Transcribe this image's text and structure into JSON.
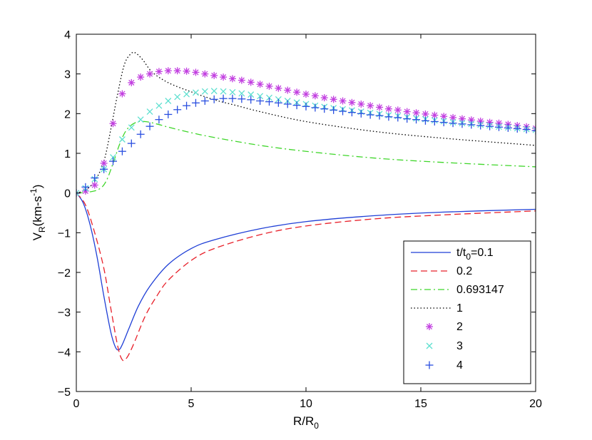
{
  "chart_data": {
    "type": "line",
    "title": "",
    "xlabel": {
      "main": "R/R",
      "sub": "0"
    },
    "ylabel": {
      "main": "V",
      "sub": "R",
      "unit_prefix": "(km-s",
      "unit_sup": "-1",
      "unit_suffix": ")"
    },
    "xlim": [
      0,
      20
    ],
    "ylim": [
      -5,
      4
    ],
    "xticks": [
      0,
      5,
      10,
      15,
      20
    ],
    "yticks": [
      -5,
      -4,
      -3,
      -2,
      -1,
      0,
      1,
      2,
      3,
      4
    ],
    "xtick_labels": [
      "0",
      "5",
      "10",
      "15",
      "20"
    ],
    "ytick_labels": [
      "−5",
      "−4",
      "−3",
      "−2",
      "−1",
      "0",
      "1",
      "2",
      "3",
      "4"
    ],
    "grid": false,
    "legend_position": "lower-right",
    "legend_first": {
      "prefix": "t/t",
      "sub": "0",
      "suffix": "=0.1"
    },
    "series": [
      {
        "name": "t/t0=0.1",
        "label": "t/t0=0.1",
        "style": "solid",
        "color": "#1f3fd6",
        "x": [
          0,
          0.3,
          0.6,
          0.9,
          1.2,
          1.5,
          1.7,
          1.85,
          2.0,
          2.3,
          2.7,
          3.2,
          4,
          5,
          6,
          8,
          10,
          13,
          16,
          20
        ],
        "y": [
          0,
          -0.25,
          -0.8,
          -1.6,
          -2.6,
          -3.5,
          -3.88,
          -3.95,
          -3.82,
          -3.4,
          -2.85,
          -2.35,
          -1.8,
          -1.4,
          -1.18,
          -0.9,
          -0.72,
          -0.57,
          -0.48,
          -0.41
        ]
      },
      {
        "name": "0.2",
        "label": "0.2",
        "style": "dashed",
        "color": "#e8202a",
        "x": [
          0,
          0.4,
          0.8,
          1.2,
          1.5,
          1.8,
          2.0,
          2.2,
          2.5,
          3,
          3.5,
          4,
          5,
          6,
          8,
          10,
          13,
          16,
          20
        ],
        "y": [
          0,
          -0.3,
          -1.0,
          -1.9,
          -2.9,
          -3.85,
          -4.2,
          -4.15,
          -3.8,
          -3.1,
          -2.6,
          -2.2,
          -1.7,
          -1.4,
          -1.05,
          -0.83,
          -0.65,
          -0.55,
          -0.45
        ]
      },
      {
        "name": "0.693147",
        "label": "0.693147",
        "style": "dashdot",
        "color": "#3fd62a",
        "x": [
          0,
          0.5,
          1.0,
          1.3,
          1.6,
          1.9,
          2.2,
          2.6,
          3.0,
          3.5,
          4,
          5,
          6,
          8,
          10,
          13,
          16,
          20
        ],
        "y": [
          0,
          0.02,
          0.1,
          0.3,
          0.75,
          1.25,
          1.6,
          1.78,
          1.8,
          1.74,
          1.66,
          1.52,
          1.4,
          1.2,
          1.05,
          0.88,
          0.77,
          0.66
        ]
      },
      {
        "name": "1",
        "label": "1",
        "style": "dotted",
        "color": "#000000",
        "x": [
          0,
          0.4,
          0.8,
          1.2,
          1.5,
          1.8,
          2.1,
          2.4,
          2.6,
          2.9,
          3.3,
          4,
          5,
          6,
          7,
          8,
          10,
          13,
          16,
          20
        ],
        "y": [
          0,
          0.08,
          0.3,
          0.8,
          1.6,
          2.5,
          3.25,
          3.52,
          3.52,
          3.35,
          3.05,
          2.78,
          2.55,
          2.35,
          2.2,
          2.05,
          1.8,
          1.55,
          1.38,
          1.2
        ]
      },
      {
        "name": "2",
        "label": "2",
        "style": "marker-star",
        "color": "#c23fe0",
        "x": [
          0,
          0.4,
          0.8,
          1.2,
          1.6,
          2.0,
          2.4,
          2.8,
          3.2,
          3.6,
          4.0,
          4.4,
          4.8,
          5.2,
          5.6,
          6.0,
          6.4,
          6.8,
          7.2,
          7.6,
          8.0,
          8.4,
          8.8,
          9.2,
          9.6,
          10.0,
          10.4,
          10.8,
          11.2,
          11.6,
          12.0,
          12.4,
          12.8,
          13.2,
          13.6,
          14.0,
          14.4,
          14.8,
          15.2,
          15.6,
          16.0,
          16.4,
          16.8,
          17.2,
          17.6,
          18.0,
          18.4,
          18.8,
          19.2,
          19.6,
          20.0
        ],
        "y": [
          0,
          0.05,
          0.2,
          0.75,
          1.75,
          2.5,
          2.78,
          2.92,
          3.0,
          3.06,
          3.08,
          3.08,
          3.07,
          3.04,
          3.0,
          2.96,
          2.92,
          2.88,
          2.84,
          2.79,
          2.74,
          2.69,
          2.64,
          2.59,
          2.54,
          2.49,
          2.45,
          2.4,
          2.36,
          2.32,
          2.28,
          2.24,
          2.2,
          2.16,
          2.12,
          2.09,
          2.05,
          2.02,
          1.99,
          1.96,
          1.93,
          1.9,
          1.87,
          1.84,
          1.81,
          1.78,
          1.76,
          1.73,
          1.7,
          1.67,
          1.63
        ]
      },
      {
        "name": "3",
        "label": "3",
        "style": "marker-x",
        "color": "#5fe0d0",
        "x": [
          0,
          0.4,
          0.8,
          1.2,
          1.6,
          2.0,
          2.4,
          2.8,
          3.2,
          3.6,
          4.0,
          4.4,
          4.8,
          5.2,
          5.6,
          6.0,
          6.4,
          6.8,
          7.2,
          7.6,
          8.0,
          8.4,
          8.8,
          9.2,
          9.6,
          10.0,
          10.4,
          10.8,
          11.2,
          11.6,
          12.0,
          12.4,
          12.8,
          13.2,
          13.6,
          14.0,
          14.4,
          14.8,
          15.2,
          15.6,
          16.0,
          16.4,
          16.8,
          17.2,
          17.6,
          18.0,
          18.4,
          18.8,
          19.2,
          19.6,
          20.0
        ],
        "y": [
          0,
          0.12,
          0.35,
          0.6,
          0.9,
          1.35,
          1.65,
          1.85,
          2.05,
          2.2,
          2.32,
          2.42,
          2.49,
          2.53,
          2.56,
          2.57,
          2.56,
          2.54,
          2.51,
          2.48,
          2.44,
          2.4,
          2.36,
          2.32,
          2.28,
          2.24,
          2.2,
          2.17,
          2.14,
          2.11,
          2.08,
          2.05,
          2.02,
          1.99,
          1.96,
          1.94,
          1.91,
          1.88,
          1.86,
          1.83,
          1.81,
          1.78,
          1.76,
          1.74,
          1.72,
          1.7,
          1.67,
          1.65,
          1.63,
          1.61,
          1.59
        ]
      },
      {
        "name": "4",
        "label": "4",
        "style": "marker-plus",
        "color": "#2a4fe0",
        "x": [
          0,
          0.4,
          0.8,
          1.2,
          1.6,
          2.0,
          2.4,
          2.8,
          3.2,
          3.6,
          4.0,
          4.4,
          4.8,
          5.2,
          5.6,
          6.0,
          6.4,
          6.8,
          7.2,
          7.6,
          8.0,
          8.4,
          8.8,
          9.2,
          9.6,
          10.0,
          10.4,
          10.8,
          11.2,
          11.6,
          12.0,
          12.4,
          12.8,
          13.2,
          13.6,
          14.0,
          14.4,
          14.8,
          15.2,
          15.6,
          16.0,
          16.4,
          16.8,
          17.2,
          17.6,
          18.0,
          18.4,
          18.8,
          19.2,
          19.6,
          20.0
        ],
        "y": [
          0,
          0.15,
          0.38,
          0.6,
          0.8,
          1.05,
          1.25,
          1.48,
          1.68,
          1.85,
          1.98,
          2.1,
          2.2,
          2.27,
          2.32,
          2.36,
          2.38,
          2.38,
          2.37,
          2.35,
          2.32,
          2.3,
          2.27,
          2.24,
          2.21,
          2.18,
          2.15,
          2.12,
          2.09,
          2.06,
          2.03,
          2.0,
          1.97,
          1.95,
          1.92,
          1.9,
          1.87,
          1.85,
          1.82,
          1.8,
          1.78,
          1.76,
          1.74,
          1.72,
          1.7,
          1.68,
          1.66,
          1.64,
          1.62,
          1.6,
          1.57
        ]
      }
    ]
  }
}
